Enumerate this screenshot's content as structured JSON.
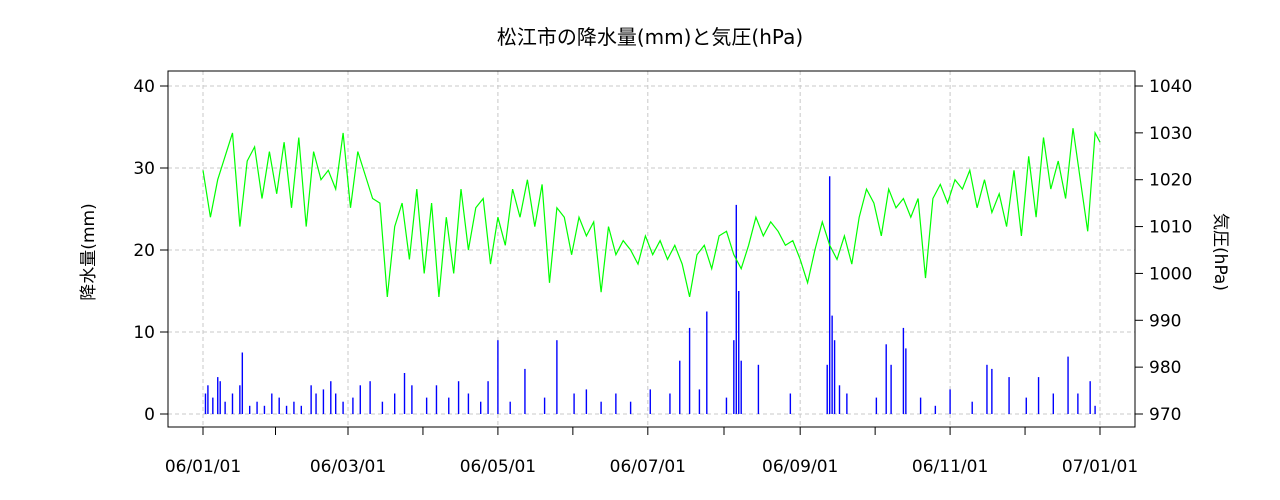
{
  "chart_data": {
    "type": "line",
    "title": "松江市の降水量(mm)と気圧(hPa)",
    "ylabel_left": "降水量(mm)",
    "ylabel_right": "気圧(hPa)",
    "x_ticks": [
      "06/01/01",
      "06/03/01",
      "06/05/01",
      "06/07/01",
      "06/09/01",
      "06/11/01",
      "07/01/01"
    ],
    "x_range": [
      "2006-01-01",
      "2007-01-01"
    ],
    "ylim_left": [
      0,
      40
    ],
    "yticks_left": [
      "0",
      "10",
      "20",
      "30",
      "40"
    ],
    "ylim_right": [
      970,
      1040
    ],
    "yticks_right": [
      "970",
      "980",
      "990",
      "1000",
      "1010",
      "1020",
      "1030",
      "1040"
    ],
    "grid": true,
    "series": [
      {
        "name": "",
        "kind": "bar",
        "axis": "left",
        "color": "#0000ff",
        "note": "daily precipitation (mm), selected visible values",
        "points": [
          [
            "2006-01-02",
            2.5
          ],
          [
            "2006-01-03",
            3.5
          ],
          [
            "2006-01-05",
            2.0
          ],
          [
            "2006-01-07",
            4.5
          ],
          [
            "2006-01-08",
            4.0
          ],
          [
            "2006-01-10",
            1.5
          ],
          [
            "2006-01-13",
            2.5
          ],
          [
            "2006-01-16",
            3.5
          ],
          [
            "2006-01-17",
            7.5
          ],
          [
            "2006-01-20",
            1.0
          ],
          [
            "2006-01-23",
            1.5
          ],
          [
            "2006-01-26",
            1.0
          ],
          [
            "2006-01-29",
            2.5
          ],
          [
            "2006-02-01",
            2.0
          ],
          [
            "2006-02-04",
            1.0
          ],
          [
            "2006-02-07",
            1.5
          ],
          [
            "2006-02-10",
            1.0
          ],
          [
            "2006-02-14",
            3.5
          ],
          [
            "2006-02-16",
            2.5
          ],
          [
            "2006-02-19",
            3.0
          ],
          [
            "2006-02-22",
            4.0
          ],
          [
            "2006-02-24",
            2.5
          ],
          [
            "2006-02-27",
            1.5
          ],
          [
            "2006-03-03",
            2.0
          ],
          [
            "2006-03-06",
            3.5
          ],
          [
            "2006-03-10",
            4.0
          ],
          [
            "2006-03-15",
            1.5
          ],
          [
            "2006-03-20",
            2.5
          ],
          [
            "2006-03-24",
            5.0
          ],
          [
            "2006-03-27",
            3.5
          ],
          [
            "2006-04-02",
            2.0
          ],
          [
            "2006-04-06",
            3.5
          ],
          [
            "2006-04-11",
            2.0
          ],
          [
            "2006-04-15",
            4.0
          ],
          [
            "2006-04-19",
            2.5
          ],
          [
            "2006-04-24",
            1.5
          ],
          [
            "2006-04-27",
            4.0
          ],
          [
            "2006-05-01",
            9.0
          ],
          [
            "2006-05-06",
            1.5
          ],
          [
            "2006-05-12",
            5.5
          ],
          [
            "2006-05-20",
            2.0
          ],
          [
            "2006-05-25",
            9.0
          ],
          [
            "2006-06-01",
            2.5
          ],
          [
            "2006-06-06",
            3.0
          ],
          [
            "2006-06-12",
            1.5
          ],
          [
            "2006-06-18",
            2.5
          ],
          [
            "2006-06-24",
            1.5
          ],
          [
            "2006-07-02",
            3.0
          ],
          [
            "2006-07-10",
            2.5
          ],
          [
            "2006-07-14",
            6.5
          ],
          [
            "2006-07-18",
            10.5
          ],
          [
            "2006-07-22",
            3.0
          ],
          [
            "2006-07-25",
            12.5
          ],
          [
            "2006-08-02",
            2.0
          ],
          [
            "2006-08-05",
            9.0
          ],
          [
            "2006-08-06",
            25.5
          ],
          [
            "2006-08-07",
            15.0
          ],
          [
            "2006-08-08",
            6.5
          ],
          [
            "2006-08-15",
            6.0
          ],
          [
            "2006-08-28",
            2.5
          ],
          [
            "2006-09-12",
            6.0
          ],
          [
            "2006-09-13",
            29.0
          ],
          [
            "2006-09-14",
            12.0
          ],
          [
            "2006-09-15",
            9.0
          ],
          [
            "2006-09-17",
            3.5
          ],
          [
            "2006-09-20",
            2.5
          ],
          [
            "2006-10-02",
            2.0
          ],
          [
            "2006-10-06",
            8.5
          ],
          [
            "2006-10-08",
            6.0
          ],
          [
            "2006-10-13",
            10.5
          ],
          [
            "2006-10-14",
            8.0
          ],
          [
            "2006-10-20",
            2.0
          ],
          [
            "2006-10-26",
            1.0
          ],
          [
            "2006-11-01",
            3.0
          ],
          [
            "2006-11-10",
            1.5
          ],
          [
            "2006-11-16",
            6.0
          ],
          [
            "2006-11-18",
            5.5
          ],
          [
            "2006-11-25",
            4.5
          ],
          [
            "2006-12-02",
            2.0
          ],
          [
            "2006-12-07",
            4.5
          ],
          [
            "2006-12-13",
            2.5
          ],
          [
            "2006-12-19",
            7.0
          ],
          [
            "2006-12-23",
            2.5
          ],
          [
            "2006-12-28",
            4.0
          ],
          [
            "2006-12-30",
            1.0
          ]
        ]
      },
      {
        "name": "",
        "kind": "line",
        "axis": "right",
        "color": "#00ff00",
        "note": "pressure (hPa), approximate values read from the plot",
        "points": [
          [
            "2006-01-01",
            1022
          ],
          [
            "2006-01-04",
            1012
          ],
          [
            "2006-01-07",
            1020
          ],
          [
            "2006-01-10",
            1025
          ],
          [
            "2006-01-13",
            1030
          ],
          [
            "2006-01-16",
            1010
          ],
          [
            "2006-01-19",
            1024
          ],
          [
            "2006-01-22",
            1027
          ],
          [
            "2006-01-25",
            1016
          ],
          [
            "2006-01-28",
            1026
          ],
          [
            "2006-01-31",
            1017
          ],
          [
            "2006-02-03",
            1028
          ],
          [
            "2006-02-06",
            1014
          ],
          [
            "2006-02-09",
            1029
          ],
          [
            "2006-02-12",
            1010
          ],
          [
            "2006-02-15",
            1026
          ],
          [
            "2006-02-18",
            1020
          ],
          [
            "2006-02-21",
            1022
          ],
          [
            "2006-02-24",
            1018
          ],
          [
            "2006-02-27",
            1030
          ],
          [
            "2006-03-02",
            1014
          ],
          [
            "2006-03-05",
            1026
          ],
          [
            "2006-03-08",
            1021
          ],
          [
            "2006-03-11",
            1016
          ],
          [
            "2006-03-14",
            1015
          ],
          [
            "2006-03-17",
            995
          ],
          [
            "2006-03-20",
            1010
          ],
          [
            "2006-03-23",
            1015
          ],
          [
            "2006-03-26",
            1003
          ],
          [
            "2006-03-29",
            1018
          ],
          [
            "2006-04-01",
            1000
          ],
          [
            "2006-04-04",
            1015
          ],
          [
            "2006-04-07",
            995
          ],
          [
            "2006-04-10",
            1012
          ],
          [
            "2006-04-13",
            1000
          ],
          [
            "2006-04-16",
            1018
          ],
          [
            "2006-04-19",
            1005
          ],
          [
            "2006-04-22",
            1014
          ],
          [
            "2006-04-25",
            1016
          ],
          [
            "2006-04-28",
            1002
          ],
          [
            "2006-05-01",
            1012
          ],
          [
            "2006-05-04",
            1006
          ],
          [
            "2006-05-07",
            1018
          ],
          [
            "2006-05-10",
            1012
          ],
          [
            "2006-05-13",
            1020
          ],
          [
            "2006-05-16",
            1010
          ],
          [
            "2006-05-19",
            1019
          ],
          [
            "2006-05-22",
            998
          ],
          [
            "2006-05-25",
            1014
          ],
          [
            "2006-05-28",
            1012
          ],
          [
            "2006-05-31",
            1004
          ],
          [
            "2006-06-03",
            1012
          ],
          [
            "2006-06-06",
            1008
          ],
          [
            "2006-06-09",
            1011
          ],
          [
            "2006-06-12",
            996
          ],
          [
            "2006-06-15",
            1010
          ],
          [
            "2006-06-18",
            1004
          ],
          [
            "2006-06-21",
            1007
          ],
          [
            "2006-06-24",
            1005
          ],
          [
            "2006-06-27",
            1002
          ],
          [
            "2006-06-30",
            1008
          ],
          [
            "2006-07-03",
            1004
          ],
          [
            "2006-07-06",
            1007
          ],
          [
            "2006-07-09",
            1003
          ],
          [
            "2006-07-12",
            1006
          ],
          [
            "2006-07-15",
            1002
          ],
          [
            "2006-07-18",
            995
          ],
          [
            "2006-07-21",
            1004
          ],
          [
            "2006-07-24",
            1006
          ],
          [
            "2006-07-27",
            1001
          ],
          [
            "2006-07-30",
            1008
          ],
          [
            "2006-08-02",
            1009
          ],
          [
            "2006-08-05",
            1004
          ],
          [
            "2006-08-08",
            1001
          ],
          [
            "2006-08-11",
            1006
          ],
          [
            "2006-08-14",
            1012
          ],
          [
            "2006-08-17",
            1008
          ],
          [
            "2006-08-20",
            1011
          ],
          [
            "2006-08-23",
            1009
          ],
          [
            "2006-08-26",
            1006
          ],
          [
            "2006-08-29",
            1007
          ],
          [
            "2006-09-01",
            1003
          ],
          [
            "2006-09-04",
            998
          ],
          [
            "2006-09-07",
            1005
          ],
          [
            "2006-09-10",
            1011
          ],
          [
            "2006-09-13",
            1006
          ],
          [
            "2006-09-16",
            1003
          ],
          [
            "2006-09-19",
            1008
          ],
          [
            "2006-09-22",
            1002
          ],
          [
            "2006-09-25",
            1012
          ],
          [
            "2006-09-28",
            1018
          ],
          [
            "2006-10-01",
            1015
          ],
          [
            "2006-10-04",
            1008
          ],
          [
            "2006-10-07",
            1018
          ],
          [
            "2006-10-10",
            1014
          ],
          [
            "2006-10-13",
            1016
          ],
          [
            "2006-10-16",
            1012
          ],
          [
            "2006-10-19",
            1016
          ],
          [
            "2006-10-22",
            999
          ],
          [
            "2006-10-25",
            1016
          ],
          [
            "2006-10-28",
            1019
          ],
          [
            "2006-10-31",
            1015
          ],
          [
            "2006-11-03",
            1020
          ],
          [
            "2006-11-06",
            1018
          ],
          [
            "2006-11-09",
            1022
          ],
          [
            "2006-11-12",
            1014
          ],
          [
            "2006-11-15",
            1020
          ],
          [
            "2006-11-18",
            1013
          ],
          [
            "2006-11-21",
            1017
          ],
          [
            "2006-11-24",
            1010
          ],
          [
            "2006-11-27",
            1022
          ],
          [
            "2006-11-30",
            1008
          ],
          [
            "2006-12-03",
            1025
          ],
          [
            "2006-12-06",
            1012
          ],
          [
            "2006-12-09",
            1029
          ],
          [
            "2006-12-12",
            1018
          ],
          [
            "2006-12-15",
            1024
          ],
          [
            "2006-12-18",
            1016
          ],
          [
            "2006-12-21",
            1031
          ],
          [
            "2006-12-24",
            1020
          ],
          [
            "2006-12-27",
            1009
          ],
          [
            "2006-12-30",
            1030
          ],
          [
            "2007-01-01",
            1028
          ]
        ]
      }
    ]
  }
}
